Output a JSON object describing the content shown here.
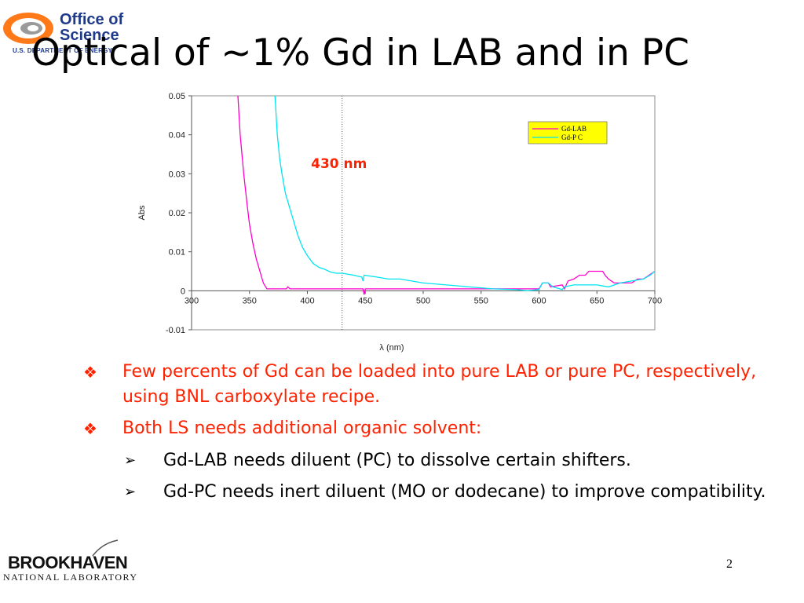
{
  "header": {
    "logo_line1": "Office of",
    "logo_line2": "Science",
    "logo_line3": "U.S. DEPARTMENT OF ENERGY",
    "title": "Optical of ~1% Gd in LAB and in PC"
  },
  "chart_data": {
    "type": "line",
    "title": "",
    "xlabel": "λ (nm)",
    "ylabel": "Abs",
    "xlim": [
      300,
      700
    ],
    "ylim": [
      -0.01,
      0.05
    ],
    "xticks": [
      "300",
      "350",
      "400",
      "450",
      "500",
      "550",
      "600",
      "650",
      "700"
    ],
    "yticks": [
      "0.05",
      "0.04",
      "0.03",
      "0.02",
      "0.01",
      "0",
      "-0.01"
    ],
    "grid": false,
    "legend_position": "top-right",
    "annotation": {
      "text": "430 nm",
      "x": 430
    },
    "series": [
      {
        "name": "Gd-LAB",
        "color": "#ff00cc",
        "points": [
          [
            340,
            0.05
          ],
          [
            342,
            0.04
          ],
          [
            345,
            0.03
          ],
          [
            348,
            0.022
          ],
          [
            350,
            0.017
          ],
          [
            353,
            0.012
          ],
          [
            356,
            0.008
          ],
          [
            359,
            0.005
          ],
          [
            362,
            0.002
          ],
          [
            365,
            0.0005
          ],
          [
            368,
            0.0005
          ],
          [
            375,
            0.0005
          ],
          [
            382,
            0.0005
          ],
          [
            383,
            0.001
          ],
          [
            385,
            0.0005
          ],
          [
            390,
            0.0005
          ],
          [
            400,
            0.0005
          ],
          [
            430,
            0.0005
          ],
          [
            448,
            0.0005
          ],
          [
            449,
            -0.001
          ],
          [
            450,
            0.0005
          ],
          [
            500,
            0.0005
          ],
          [
            580,
            0.0005
          ],
          [
            600,
            0.0005
          ],
          [
            603,
            0.002
          ],
          [
            608,
            0.002
          ],
          [
            610,
            0.001
          ],
          [
            620,
            0.0015
          ],
          [
            622,
            0.0005
          ],
          [
            625,
            0.0025
          ],
          [
            630,
            0.003
          ],
          [
            635,
            0.004
          ],
          [
            640,
            0.004
          ],
          [
            643,
            0.005
          ],
          [
            655,
            0.005
          ],
          [
            657,
            0.004
          ],
          [
            660,
            0.003
          ],
          [
            665,
            0.002
          ],
          [
            680,
            0.002
          ],
          [
            685,
            0.003
          ],
          [
            690,
            0.003
          ],
          [
            695,
            0.004
          ],
          [
            700,
            0.005
          ]
        ]
      },
      {
        "name": "Gd-P C",
        "color": "#00e5f0",
        "points": [
          [
            372,
            0.05
          ],
          [
            374,
            0.04
          ],
          [
            376,
            0.034
          ],
          [
            378,
            0.03
          ],
          [
            381,
            0.025
          ],
          [
            384,
            0.022
          ],
          [
            386,
            0.02
          ],
          [
            388,
            0.018
          ],
          [
            392,
            0.014
          ],
          [
            396,
            0.011
          ],
          [
            400,
            0.009
          ],
          [
            405,
            0.007
          ],
          [
            410,
            0.006
          ],
          [
            415,
            0.0055
          ],
          [
            420,
            0.0048
          ],
          [
            425,
            0.0045
          ],
          [
            430,
            0.0045
          ],
          [
            440,
            0.004
          ],
          [
            447,
            0.0035
          ],
          [
            448,
            0.0025
          ],
          [
            449,
            0.004
          ],
          [
            460,
            0.0035
          ],
          [
            470,
            0.003
          ],
          [
            480,
            0.003
          ],
          [
            500,
            0.002
          ],
          [
            520,
            0.0015
          ],
          [
            540,
            0.001
          ],
          [
            560,
            0.0005
          ],
          [
            580,
            0.0003
          ],
          [
            590,
            0
          ],
          [
            600,
            0.0003
          ],
          [
            603,
            0.002
          ],
          [
            608,
            0.002
          ],
          [
            612,
            0.001
          ],
          [
            618,
            0.0005
          ],
          [
            620,
            0.0003
          ],
          [
            622,
            0.001
          ],
          [
            630,
            0.0015
          ],
          [
            640,
            0.0015
          ],
          [
            650,
            0.0015
          ],
          [
            660,
            0.001
          ],
          [
            670,
            0.002
          ],
          [
            680,
            0.0025
          ],
          [
            690,
            0.003
          ],
          [
            696,
            0.004
          ],
          [
            700,
            0.005
          ]
        ]
      }
    ]
  },
  "bullets": [
    {
      "marker": "❖",
      "text": "Few percents of Gd can be loaded into pure LAB or pure PC, respectively, using BNL carboxylate recipe."
    },
    {
      "marker": "❖",
      "text": "Both LS needs additional organic solvent:"
    }
  ],
  "sub_bullets": [
    {
      "marker": "➢",
      "text": "Gd-LAB needs diluent (PC) to dissolve certain shifters."
    },
    {
      "marker": "➢",
      "text": "Gd-PC needs inert diluent (MO or dodecane) to improve compatibility."
    }
  ],
  "footer": {
    "bnl_name": "BROOKHAVEN",
    "bnl_sub": "NATIONAL LABORATORY",
    "page_number": "2"
  },
  "colors": {
    "title": "#000000",
    "bullet_text": "#ff2200",
    "annotation": "#ff2200",
    "legend_bg": "#ffff00"
  }
}
